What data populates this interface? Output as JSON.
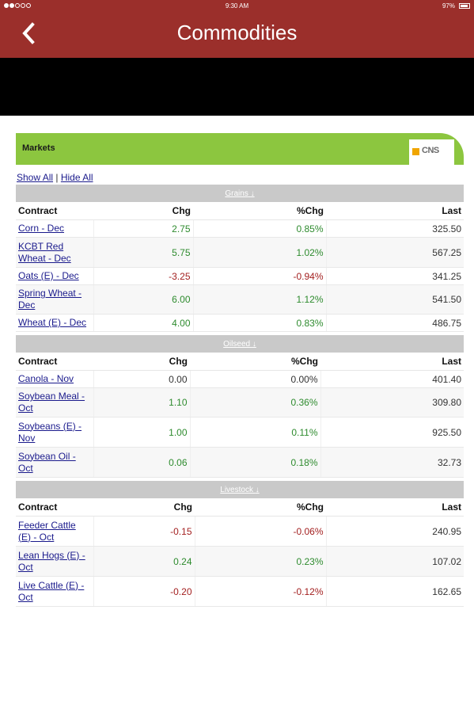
{
  "status_bar": {
    "time": "9:30 AM",
    "battery": "97%"
  },
  "nav": {
    "title": "Commodities"
  },
  "markets": {
    "title": "Markets",
    "logo_text": "CNS",
    "show_all": "Show All",
    "separator": "|",
    "hide_all": "Hide All",
    "column_headers": {
      "contract": "Contract",
      "chg": "Chg",
      "pct_chg": "%Chg",
      "last": "Last"
    },
    "sections": [
      {
        "name": "Grains",
        "arrow": "↓",
        "rows": [
          {
            "contract": "Corn - Dec",
            "chg": "2.75",
            "pct_chg": "0.85%",
            "last": "325.50",
            "dir": "pos"
          },
          {
            "contract": "KCBT Red Wheat - Dec",
            "chg": "5.75",
            "pct_chg": "1.02%",
            "last": "567.25",
            "dir": "pos"
          },
          {
            "contract": "Oats (E) - Dec",
            "chg": "-3.25",
            "pct_chg": "-0.94%",
            "last": "341.25",
            "dir": "neg"
          },
          {
            "contract": "Spring Wheat - Dec",
            "chg": "6.00",
            "pct_chg": "1.12%",
            "last": "541.50",
            "dir": "pos"
          },
          {
            "contract": "Wheat (E) - Dec",
            "chg": "4.00",
            "pct_chg": "0.83%",
            "last": "486.75",
            "dir": "pos"
          }
        ]
      },
      {
        "name": "Oilseed",
        "arrow": "↓",
        "rows": [
          {
            "contract": "Canola - Nov",
            "chg": "0.00",
            "pct_chg": "0.00%",
            "last": "401.40",
            "dir": "flat"
          },
          {
            "contract": "Soybean Meal - Oct",
            "chg": "1.10",
            "pct_chg": "0.36%",
            "last": "309.80",
            "dir": "pos"
          },
          {
            "contract": "Soybeans (E) - Nov",
            "chg": "1.00",
            "pct_chg": "0.11%",
            "last": "925.50",
            "dir": "pos"
          },
          {
            "contract": "Soybean Oil - Oct",
            "chg": "0.06",
            "pct_chg": "0.18%",
            "last": "32.73",
            "dir": "pos"
          }
        ]
      },
      {
        "name": "Livestock",
        "arrow": "↓",
        "rows": [
          {
            "contract": "Feeder Cattle (E) - Oct",
            "chg": "-0.15",
            "pct_chg": "-0.06%",
            "last": "240.95",
            "dir": "neg"
          },
          {
            "contract": "Lean Hogs (E) - Oct",
            "chg": "0.24",
            "pct_chg": "0.23%",
            "last": "107.02",
            "dir": "pos"
          },
          {
            "contract": "Live Cattle (E) - Oct",
            "chg": "-0.20",
            "pct_chg": "-0.12%",
            "last": "162.65",
            "dir": "neg"
          }
        ]
      }
    ]
  },
  "colors": {
    "brand": "#9b2f2b",
    "accent": "#8cc63f",
    "positive": "#2e8b2e",
    "negative": "#a32020",
    "section_bg": "#c9c9c9"
  }
}
